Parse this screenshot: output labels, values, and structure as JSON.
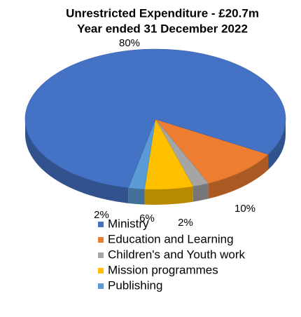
{
  "chart_data": {
    "type": "pie",
    "title": "Unrestricted Expenditure - £20.7m",
    "subtitle": "Year ended 31 December 2022",
    "categories": [
      "Ministry",
      "Education and Learning",
      "Children's and Youth work",
      "Mission programmes",
      "Publishing"
    ],
    "values": [
      80,
      10,
      2,
      6,
      2
    ],
    "value_labels": [
      "80%",
      "10%",
      "2%",
      "6%",
      "2%"
    ],
    "colors": [
      "#4472c4",
      "#ed7d31",
      "#a5a5a5",
      "#ffc000",
      "#5b9bd5"
    ],
    "legend": "bottom-left"
  }
}
